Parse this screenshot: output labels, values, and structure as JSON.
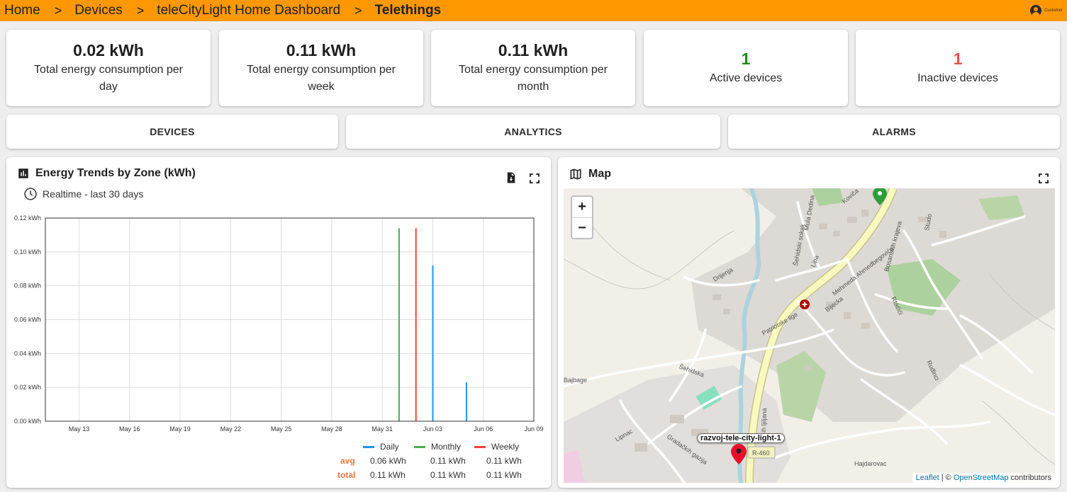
{
  "breadcrumb": {
    "items": [
      {
        "label": "Home"
      },
      {
        "label": "Devices"
      },
      {
        "label": "teleCityLight Home Dashboard"
      },
      {
        "label": "Telethings"
      }
    ],
    "separator": ">"
  },
  "user": {
    "label": "Customer"
  },
  "stats": [
    {
      "value": "0.02 kWh",
      "label": "Total energy consumption per day"
    },
    {
      "value": "0.11 kWh",
      "label": "Total energy consumption per week"
    },
    {
      "value": "0.11 kWh",
      "label": "Total energy consumption per month"
    },
    {
      "value": "1",
      "label": "Active devices",
      "color": "#1b8a1b"
    },
    {
      "value": "1",
      "label": "Inactive devices",
      "color": "#e05550"
    }
  ],
  "nav": {
    "devices": "DEVICES",
    "analytics": "ANALYTICS",
    "alarms": "ALARMS"
  },
  "chart_panel": {
    "title": "Energy Trends by Zone (kWh)",
    "timewindow": "Realtime - last 30 days",
    "icons": [
      "bar-chart-icon",
      "clock-icon",
      "export-file-icon",
      "fullscreen-icon"
    ]
  },
  "chart_data": {
    "type": "bar",
    "x_ticks": [
      "May 13",
      "May 16",
      "May 19",
      "May 22",
      "May 25",
      "May 28",
      "May 31",
      "Jun 03",
      "Jun 06",
      "Jun 09"
    ],
    "y_ticks": [
      "0.00 kWh",
      "0.02 kWh",
      "0.04 kWh",
      "0.06 kWh",
      "0.08 kWh",
      "0.10 kWh",
      "0.12 kWh"
    ],
    "ylim": [
      0,
      0.12
    ],
    "xlim": [
      "2024-05-11",
      "2024-06-09"
    ],
    "grid": true,
    "series": [
      {
        "name": "Daily",
        "color": "#2196f3",
        "points": [
          {
            "x": "2024-06-03",
            "y": 0.092
          },
          {
            "x": "2024-06-05",
            "y": 0.023
          }
        ]
      },
      {
        "name": "Monthly",
        "color": "#4caf50",
        "points": [
          {
            "x": "2024-06-01",
            "y": 0.114
          }
        ]
      },
      {
        "name": "Weekly",
        "color": "#f44336",
        "points": [
          {
            "x": "2024-06-02",
            "y": 0.114
          }
        ]
      }
    ],
    "legend": {
      "headers": [
        "Daily",
        "Monthly",
        "Weekly"
      ],
      "rows": [
        {
          "label": "avg",
          "values": [
            "0.06 kWh",
            "0.11 kWh",
            "0.11 kWh"
          ]
        },
        {
          "label": "total",
          "values": [
            "0.11 kWh",
            "0.11 kWh",
            "0.11 kWh"
          ]
        }
      ]
    }
  },
  "map_panel": {
    "title": "Map",
    "zoom_in": "+",
    "zoom_out": "−",
    "marker_label": "razvoj-tele-city-light-1",
    "labels": [
      "Mehmeda Ahmedbegovića",
      "Drijenja",
      "Patriotske lige",
      "Šehidska",
      "Lipnac",
      "Gradačkih gazija",
      "Bajbage",
      "Hajdarovac",
      "R-460",
      "Rtaćići",
      "Ruđinci",
      "Lipa",
      "Bijecka",
      "Bosanskih krajeva",
      "Studo",
      "Mula Dedina",
      "Šehidski sokak",
      "Koviča",
      "ih ljiljana"
    ],
    "attribution": {
      "leaflet": "Leaflet",
      "sep": " | © ",
      "osm": "OpenStreetMap",
      "suffix": " contributors"
    }
  }
}
